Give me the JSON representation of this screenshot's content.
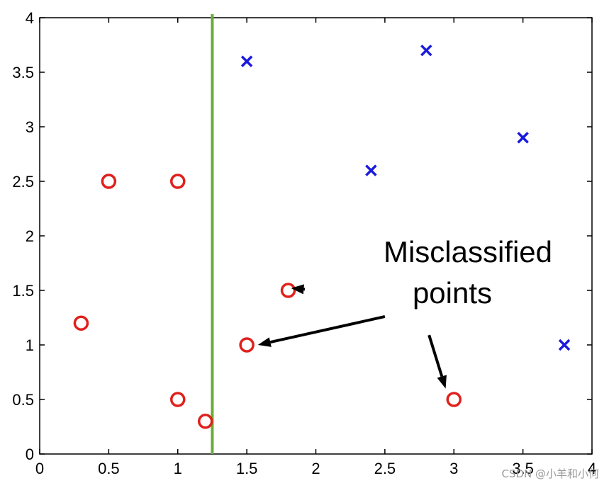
{
  "chart_data": {
    "type": "scatter",
    "xlim": [
      0,
      4
    ],
    "ylim": [
      0,
      4
    ],
    "xticks": [
      "0",
      "0.5",
      "1",
      "1.5",
      "2",
      "2.5",
      "3",
      "3.5",
      "4"
    ],
    "yticks": [
      "0",
      "0.5",
      "1",
      "1.5",
      "2",
      "2.5",
      "3",
      "3.5",
      "4"
    ],
    "grid": false,
    "series": [
      {
        "marker": "open-circle",
        "color": "#e0201c",
        "points": [
          {
            "x": 0.5,
            "y": 2.5
          },
          {
            "x": 1.0,
            "y": 2.5
          },
          {
            "x": 0.3,
            "y": 1.2
          },
          {
            "x": 1.0,
            "y": 0.5
          },
          {
            "x": 1.2,
            "y": 0.3
          },
          {
            "x": 1.8,
            "y": 1.5
          },
          {
            "x": 1.5,
            "y": 1.0
          },
          {
            "x": 3.0,
            "y": 0.5
          }
        ]
      },
      {
        "marker": "x",
        "color": "#1a1adc",
        "points": [
          {
            "x": 1.5,
            "y": 3.6
          },
          {
            "x": 2.8,
            "y": 3.7
          },
          {
            "x": 2.4,
            "y": 2.6
          },
          {
            "x": 3.5,
            "y": 2.9
          },
          {
            "x": 3.8,
            "y": 1.0
          }
        ]
      }
    ],
    "decision_boundary": {
      "type": "vertical",
      "x": 1.25,
      "color": "#6aaa3a"
    },
    "annotation": {
      "lines": [
        "Misclassified",
        "points"
      ],
      "arrows": [
        {
          "from": [
            1.92,
            1.51
          ],
          "to": [
            1.82,
            1.52
          ]
        },
        {
          "from": [
            2.5,
            1.26
          ],
          "to": [
            1.58,
            1.0
          ]
        },
        {
          "from": [
            2.82,
            1.09
          ],
          "to": [
            2.94,
            0.6
          ]
        }
      ]
    }
  },
  "watermark": "CSDN @小羊和小何"
}
